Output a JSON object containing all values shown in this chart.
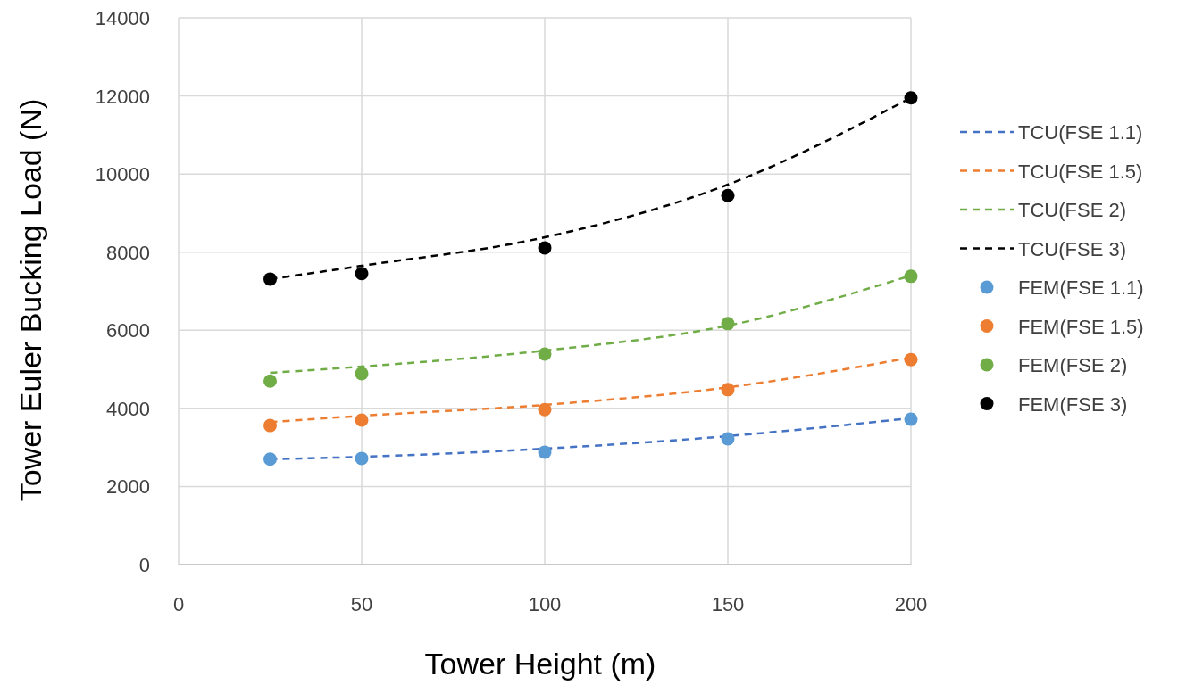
{
  "chart_data": {
    "type": "line",
    "xlabel": "Tower Height (m)",
    "ylabel": "Tower Euler Bucking  Load (N)",
    "x": [
      25,
      50,
      100,
      150,
      200
    ],
    "xlim": [
      0,
      200
    ],
    "xticks": [
      0,
      50,
      100,
      150,
      200
    ],
    "ylim": [
      0,
      14000
    ],
    "yticks": [
      0,
      2000,
      4000,
      6000,
      8000,
      10000,
      12000,
      14000
    ],
    "grid": true,
    "legend": "right",
    "line_style": "dashed",
    "marker": "none",
    "series": [
      {
        "name": "TCU(FSE 1.1)",
        "color": "#4472c4",
        "values": [
          2700,
          2760,
          2970,
          3290,
          3750
        ]
      },
      {
        "name": "TCU(FSE 1.5)",
        "color": "#ed7d31",
        "values": [
          3650,
          3810,
          4090,
          4540,
          5300
        ]
      },
      {
        "name": "TCU(FSE 2)",
        "color": "#70ad47",
        "values": [
          4910,
          5070,
          5480,
          6120,
          7400
        ]
      },
      {
        "name": "TCU(FSE 3)",
        "color": "#000000",
        "values": [
          7310,
          7650,
          8380,
          9730,
          11950
        ]
      },
      {
        "name": "FEM(FSE 1.1)",
        "type": "scatter",
        "marker": "circle",
        "color": "#5b9bd5",
        "values": [
          2700,
          2720,
          2880,
          3220,
          3720
        ]
      },
      {
        "name": "FEM(FSE 1.5)",
        "type": "scatter",
        "marker": "circle",
        "color": "#ed7d31",
        "values": [
          3560,
          3700,
          3970,
          4480,
          5250
        ]
      },
      {
        "name": "FEM(FSE 2)",
        "type": "scatter",
        "marker": "circle",
        "color": "#70ad47",
        "values": [
          4700,
          4890,
          5390,
          6170,
          7380
        ]
      },
      {
        "name": "FEM(FSE 3)",
        "type": "scatter",
        "marker": "circle",
        "color": "#000000",
        "values": [
          7310,
          7450,
          8110,
          9450,
          11950
        ]
      }
    ]
  }
}
